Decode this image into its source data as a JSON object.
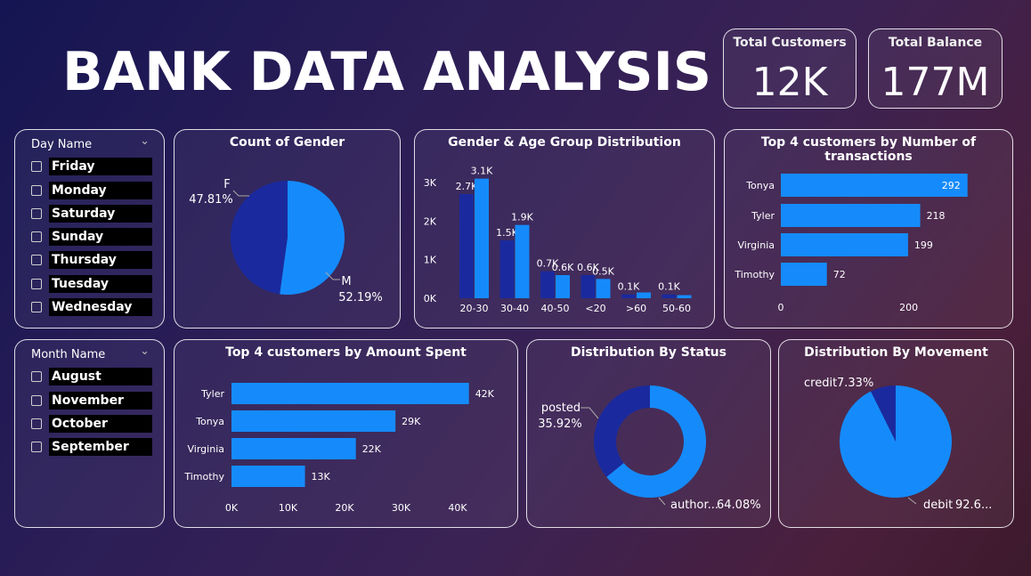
{
  "header": {
    "title": "BANK DATA ANALYSIS"
  },
  "kpis": {
    "customers": {
      "label": "Total Customers",
      "value": "12K"
    },
    "balance": {
      "label": "Total Balance",
      "value": "177M"
    }
  },
  "colors": {
    "light": "#158bfb",
    "dark": "#1a2a9e"
  },
  "slicers": {
    "day": {
      "label": "Day Name",
      "items": [
        "Friday",
        "Monday",
        "Saturday",
        "Sunday",
        "Thursday",
        "Tuesday",
        "Wednesday"
      ]
    },
    "month": {
      "label": "Month Name",
      "items": [
        "August",
        "November",
        "October",
        "September"
      ]
    }
  },
  "chart_data": [
    {
      "id": "gender",
      "type": "pie",
      "title": "Count of Gender",
      "slices": [
        {
          "label": "F",
          "percent_label": "47.81%",
          "value": 47.81,
          "color": "#1a2a9e"
        },
        {
          "label": "M",
          "percent_label": "52.19%",
          "value": 52.19,
          "color": "#158bfb"
        }
      ]
    },
    {
      "id": "gender_age",
      "type": "bar",
      "title": "Gender & Age Group Distribution",
      "categories": [
        "20-30",
        "30-40",
        "40-50",
        "<20",
        ">60",
        "50-60"
      ],
      "series": [
        {
          "values": [
            2700,
            1500,
            700,
            600,
            100,
            100
          ],
          "labels": [
            "2.7K",
            "1.5K",
            "0.7K",
            "0.6K",
            "0.1K",
            "0.1K"
          ],
          "color": "#1a2a9e"
        },
        {
          "values": [
            3100,
            1900,
            600,
            500,
            150,
            80
          ],
          "labels": [
            "3.1K",
            "1.9K",
            "0.6K",
            "0.5K",
            "",
            ""
          ],
          "color": "#158bfb"
        }
      ],
      "yticks": [
        "0K",
        "1K",
        "2K",
        "3K"
      ],
      "ylim": [
        0,
        3300
      ]
    },
    {
      "id": "top_txn",
      "type": "bar",
      "orientation": "horizontal",
      "title": "Top 4 customers by Number of transactions",
      "categories": [
        "Tonya",
        "Tyler",
        "Virginia",
        "Timothy"
      ],
      "values": [
        292,
        218,
        199,
        72
      ],
      "labels": [
        "292",
        "218",
        "199",
        "72"
      ],
      "xticks": [
        "0",
        "200"
      ],
      "xlim": [
        0,
        330
      ]
    },
    {
      "id": "top_amount",
      "type": "bar",
      "orientation": "horizontal",
      "title": "Top 4 customers by Amount Spent",
      "categories": [
        "Tyler",
        "Tonya",
        "Virginia",
        "Timothy"
      ],
      "values": [
        42000,
        29000,
        22000,
        13000
      ],
      "labels": [
        "42K",
        "29K",
        "22K",
        "13K"
      ],
      "xticks": [
        "0K",
        "10K",
        "20K",
        "30K",
        "40K"
      ],
      "xlim": [
        0,
        40000
      ]
    },
    {
      "id": "status",
      "type": "pie",
      "donut": true,
      "title": "Distribution By Status",
      "slices": [
        {
          "label": "posted",
          "percent_label": "35.92%",
          "value": 35.92,
          "color": "#1a2a9e"
        },
        {
          "label": "author...",
          "percent_label": "64.08%",
          "value": 64.08,
          "color": "#158bfb"
        }
      ]
    },
    {
      "id": "movement",
      "type": "pie",
      "title": "Distribution By Movement",
      "slices": [
        {
          "label": "credit",
          "percent_label": "7.33%",
          "value": 7.33,
          "color": "#1a2a9e"
        },
        {
          "label": "debit",
          "percent_label": "92.6...",
          "value": 92.67,
          "color": "#158bfb"
        }
      ]
    }
  ]
}
